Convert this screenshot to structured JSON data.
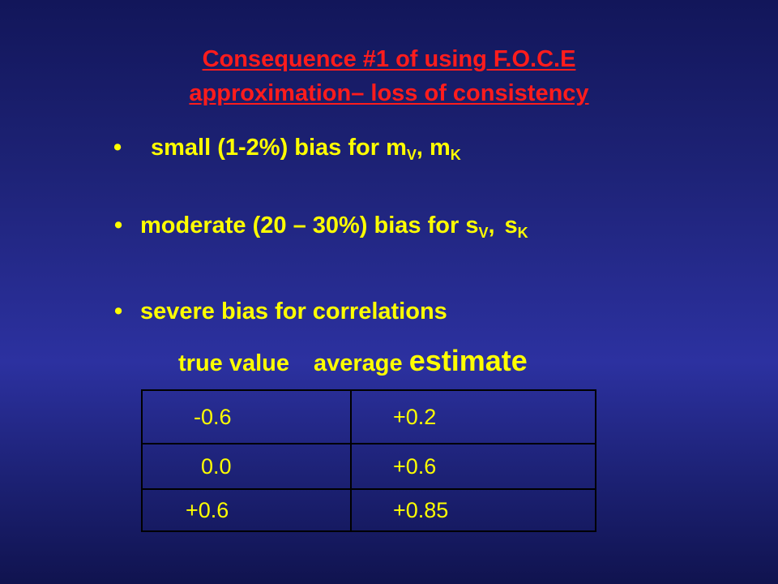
{
  "slide": {
    "title_line1": "Consequence #1 of using F.O.C.E",
    "title_line2": "approximation– loss of consistency"
  },
  "bullets": [
    {
      "marker": "•",
      "text": "small (1-2%) bias for m",
      "sub1": "V",
      "sep": ", m",
      "sub2": "K"
    },
    {
      "marker": "•",
      "text": "moderate (20 – 30%) bias for s",
      "sub1": "V",
      "sep": ",",
      "text2": "s",
      "sub2": "K"
    },
    {
      "marker": "•",
      "text": "severe bias for correlations"
    }
  ],
  "table": {
    "header_true": "true value",
    "header_avg": "average",
    "header_est": "estimate",
    "rows": [
      {
        "true_value": "-0.6",
        "average_estimate": "+0.2"
      },
      {
        "true_value": "0.0",
        "average_estimate": "+0.6"
      },
      {
        "true_value": "+0.6",
        "average_estimate": "+0.85"
      }
    ]
  },
  "colors": {
    "title": "#ff1c1c",
    "text": "#ffff00",
    "background": "#2c31a0"
  }
}
